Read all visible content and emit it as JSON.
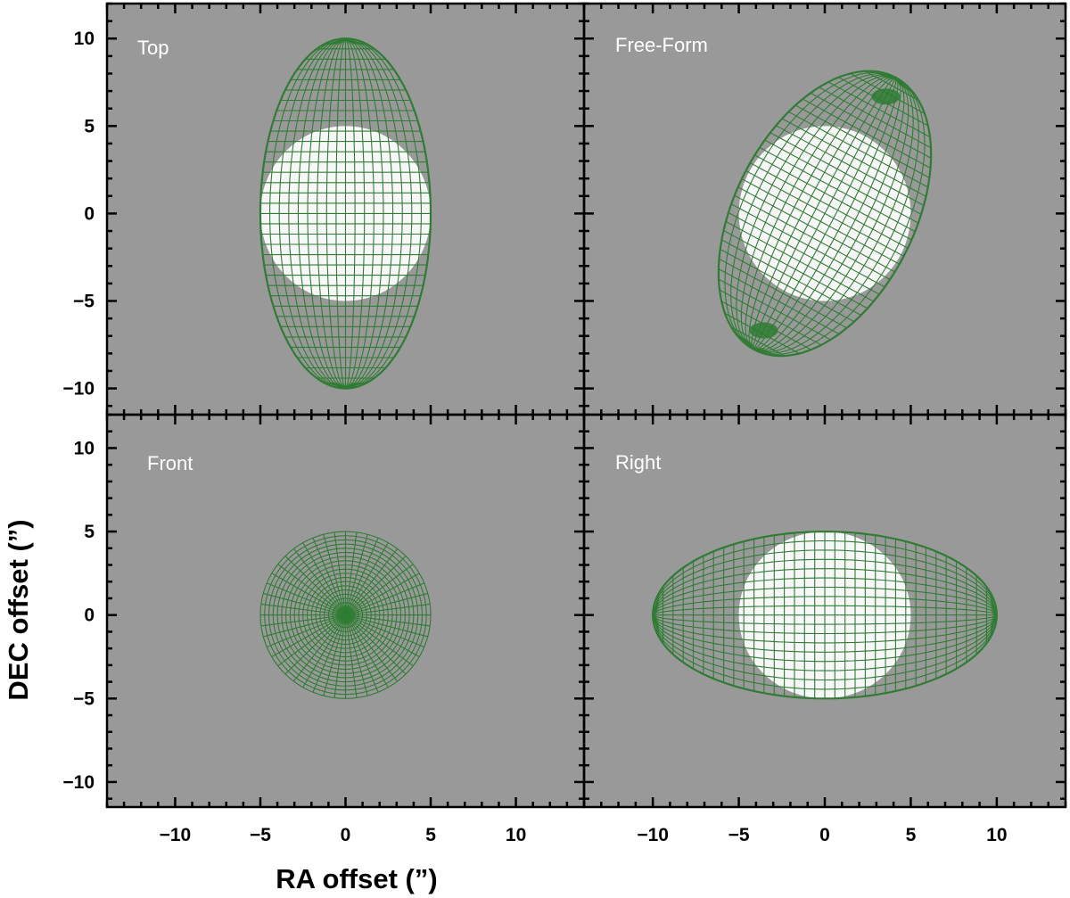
{
  "chart_data": {
    "type": "mesh",
    "xlabel": "RA offset (”)",
    "ylabel": "DEC offset (”)",
    "xlim": [
      -14,
      14
    ],
    "ylim": [
      -11.5,
      12
    ],
    "xticks": [
      -10,
      -5,
      0,
      5,
      10
    ],
    "yticks": [
      -10,
      -5,
      0,
      5,
      10
    ],
    "xtick_labels": [
      "−10",
      "−5",
      "0",
      "5",
      "10"
    ],
    "ytick_labels": [
      "−10",
      "−5",
      "0",
      "5",
      "10"
    ],
    "grid": false,
    "background_color": "#999999",
    "mesh_color": "#2e7d32",
    "highlight_color": "#ffffff",
    "panels": [
      {
        "label": "Top",
        "position": "top-left",
        "shape": "ellipse",
        "center": [
          0,
          0
        ],
        "semi_x": 5,
        "semi_y": 10,
        "rotation_deg": 0,
        "sphere_radius": 5,
        "sphere_center": [
          0,
          0
        ]
      },
      {
        "label": "Free-Form",
        "position": "top-right",
        "shape": "ellipse",
        "center": [
          0,
          0
        ],
        "semi_x": 5.2,
        "semi_y": 8.8,
        "rotation_deg": -28,
        "sphere_radius": 5,
        "sphere_center": [
          0,
          0
        ]
      },
      {
        "label": "Front",
        "position": "bottom-left",
        "shape": "circle",
        "center": [
          0,
          0
        ],
        "semi_x": 5,
        "semi_y": 5,
        "rotation_deg": 0,
        "sphere_radius": 0,
        "sphere_center": [
          0,
          0
        ]
      },
      {
        "label": "Right",
        "position": "bottom-right",
        "shape": "ellipse",
        "center": [
          0,
          0
        ],
        "semi_x": 10,
        "semi_y": 5,
        "rotation_deg": 0,
        "sphere_radius": 5,
        "sphere_center": [
          0,
          0
        ]
      }
    ]
  }
}
